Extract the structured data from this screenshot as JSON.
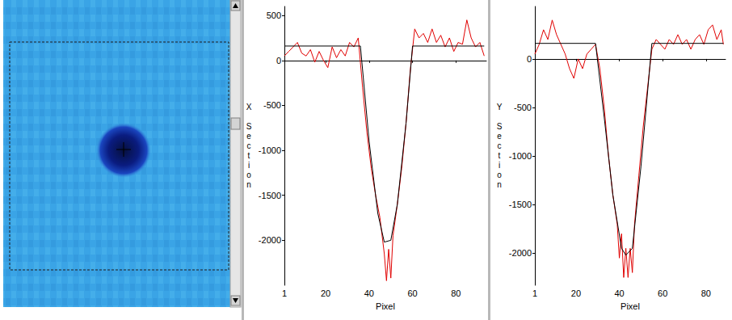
{
  "chart_data": [
    {
      "type": "line",
      "x_label": "Pixel",
      "y_label": "X Section",
      "xlim": [
        1,
        94
      ],
      "xticks": [
        1,
        20,
        40,
        60,
        80
      ],
      "ylim": [
        -2500,
        600
      ],
      "yticks": [
        500,
        0,
        -500,
        -1000,
        -1500,
        -2000
      ],
      "grid": false,
      "series": [
        {
          "color": "#e00000",
          "line_style": "solid",
          "marker": "none",
          "x": [
            1,
            3,
            5,
            7,
            9,
            11,
            13,
            15,
            17,
            19,
            21,
            23,
            25,
            27,
            29,
            31,
            33,
            35,
            37,
            39,
            41,
            43,
            45,
            47,
            48,
            49,
            50,
            51,
            53,
            55,
            57,
            59,
            61,
            63,
            65,
            67,
            69,
            71,
            73,
            75,
            77,
            79,
            81,
            83,
            85,
            87,
            89,
            91,
            93
          ],
          "values": [
            50,
            100,
            150,
            200,
            80,
            50,
            120,
            -20,
            100,
            0,
            -80,
            150,
            30,
            120,
            50,
            200,
            150,
            250,
            -300,
            -800,
            -1200,
            -1500,
            -1750,
            -2150,
            -2450,
            -2100,
            -2420,
            -1950,
            -1600,
            -1200,
            -700,
            -100,
            350,
            250,
            300,
            200,
            350,
            200,
            280,
            150,
            250,
            100,
            200,
            180,
            450,
            250,
            150,
            200,
            50
          ]
        },
        {
          "color": "#000000",
          "line_style": "solid",
          "marker": "none",
          "x": [
            1,
            36,
            40,
            44,
            47,
            50,
            53,
            57,
            60,
            93
          ],
          "values": [
            160,
            160,
            -900,
            -1700,
            -2020,
            -2000,
            -1600,
            -700,
            160,
            160
          ]
        }
      ]
    },
    {
      "type": "line",
      "x_label": "Pixel",
      "y_label": "Y Section",
      "xlim": [
        1,
        89
      ],
      "xticks": [
        1,
        20,
        40,
        60,
        80
      ],
      "ylim": [
        -2330,
        540
      ],
      "yticks": [
        0,
        -500,
        -1000,
        -1500,
        -2000
      ],
      "grid": false,
      "series": [
        {
          "color": "#e00000",
          "line_style": "solid",
          "marker": "none",
          "x": [
            1,
            3,
            5,
            7,
            9,
            11,
            13,
            15,
            17,
            19,
            21,
            23,
            25,
            27,
            29,
            31,
            33,
            35,
            37,
            39,
            40,
            41,
            42,
            43,
            44,
            45,
            46,
            47,
            49,
            51,
            53,
            55,
            57,
            59,
            61,
            63,
            65,
            67,
            69,
            71,
            73,
            75,
            77,
            79,
            81,
            83,
            85,
            87,
            88
          ],
          "values": [
            50,
            150,
            300,
            200,
            400,
            250,
            150,
            50,
            -100,
            -200,
            0,
            -100,
            50,
            100,
            150,
            -100,
            -500,
            -1000,
            -1400,
            -1700,
            -2050,
            -1800,
            -2250,
            -1950,
            -2250,
            -1950,
            -2200,
            -1700,
            -1200,
            -700,
            -300,
            100,
            200,
            150,
            100,
            200,
            150,
            250,
            150,
            200,
            100,
            200,
            250,
            150,
            300,
            350,
            200,
            300,
            150
          ]
        },
        {
          "color": "#000000",
          "line_style": "solid",
          "marker": "none",
          "x": [
            1,
            29,
            33,
            37,
            41,
            43,
            46,
            50,
            55,
            88
          ],
          "values": [
            160,
            160,
            -600,
            -1400,
            -1950,
            -2020,
            -1950,
            -1100,
            160,
            160
          ]
        }
      ]
    }
  ]
}
